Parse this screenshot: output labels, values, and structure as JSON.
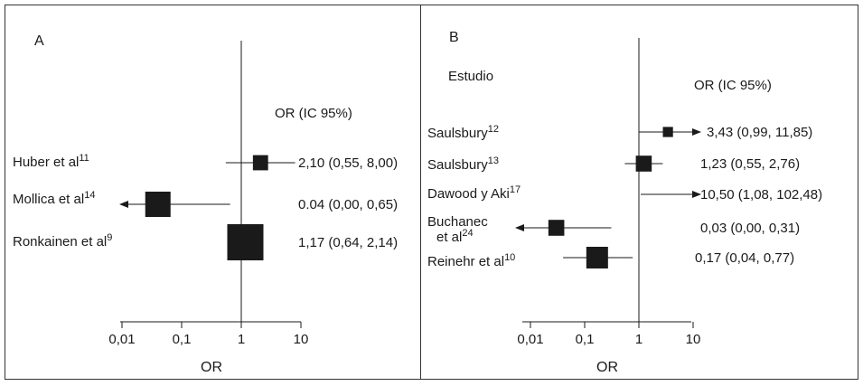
{
  "chart_data": [
    {
      "type": "forest",
      "panel_label": "A",
      "xscale": "log",
      "xlabel": "OR",
      "xticks": [
        0.01,
        0.1,
        1,
        10
      ],
      "xtick_labels": [
        "0,01",
        "0,1",
        "1",
        "10"
      ],
      "xlim": [
        0.01,
        10
      ],
      "reference_line": 1,
      "header_label": "",
      "or_header": "OR (IC 95%)",
      "studies": [
        {
          "label": "Huber et al",
          "ref": "11",
          "or": 2.1,
          "ci": [
            0.55,
            8.0
          ],
          "text": "2,10 (0,55, 8,00)",
          "weight": 0.42
        },
        {
          "label": "Mollica et al",
          "ref": "14",
          "or": 0.04,
          "ci": [
            0.0,
            0.65
          ],
          "text": "0.04 (0,00, 0,65)",
          "weight": 0.7,
          "arrow_left": true
        },
        {
          "label": "Ronkainen et al",
          "ref": "9",
          "or": 1.17,
          "ci": [
            0.64,
            2.14
          ],
          "text": "1,17 (0,64, 2,14)",
          "weight": 1.0
        }
      ]
    },
    {
      "type": "forest",
      "panel_label": "B",
      "xscale": "log",
      "xlabel": "OR",
      "xticks": [
        0.01,
        0.1,
        1,
        10
      ],
      "xtick_labels": [
        "0,01",
        "0,1",
        "1",
        "10"
      ],
      "xlim": [
        0.01,
        10
      ],
      "reference_line": 1,
      "header_label": "Estudio",
      "or_header": "OR (IC 95%)",
      "studies": [
        {
          "label": "Saulsbury",
          "ref": "12",
          "or": 3.43,
          "ci": [
            0.99,
            11.85
          ],
          "text": "3,43 (0,99, 11,85)",
          "weight": 0.35,
          "arrow_right": true
        },
        {
          "label": "Saulsbury",
          "ref": "13",
          "or": 1.23,
          "ci": [
            0.55,
            2.76
          ],
          "text": "1,23 (0,55, 2,76)",
          "weight": 0.55
        },
        {
          "label": "Dawood y Aki",
          "ref": "17",
          "or": 10.5,
          "ci": [
            1.08,
            102.48
          ],
          "text": "10,50 (1,08, 102,48)",
          "weight": 0.0,
          "arrow_right": true
        },
        {
          "label": "Buchanec",
          "label2": "et al",
          "ref": "24",
          "or": 0.03,
          "ci": [
            0.0,
            0.31
          ],
          "text": "0,03 (0,00, 0,31)",
          "weight": 0.55,
          "arrow_left": true
        },
        {
          "label": "Reinehr et al",
          "ref": "10",
          "or": 0.17,
          "ci": [
            0.04,
            0.77
          ],
          "text": "0,17 (0,04, 0,77)",
          "weight": 0.75
        }
      ]
    }
  ]
}
